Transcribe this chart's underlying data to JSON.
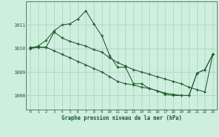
{
  "background_color": "#ceeede",
  "grid_color": "#aaccbb",
  "line_color": "#1a5c28",
  "marker_color": "#1a5c28",
  "xlabel": "Graphe pression niveau de la mer (hPa)",
  "xlim": [
    -0.5,
    23.5
  ],
  "ylim": [
    1007.4,
    1012.0
  ],
  "yticks": [
    1008,
    1009,
    1010,
    1011
  ],
  "xticks": [
    0,
    1,
    2,
    3,
    4,
    5,
    6,
    7,
    8,
    9,
    10,
    11,
    12,
    13,
    14,
    15,
    16,
    17,
    18,
    19,
    20,
    21,
    22,
    23
  ],
  "series1": [
    1010.0,
    1010.1,
    1010.35,
    1010.75,
    1011.0,
    1011.05,
    1011.25,
    1011.6,
    1011.05,
    1010.55,
    1009.7,
    1009.2,
    1009.2,
    1008.5,
    1008.5,
    1008.3,
    1008.2,
    1008.05,
    1008.0,
    1008.0,
    1008.0,
    1008.95,
    1009.1,
    1009.75
  ],
  "series2": [
    1010.05,
    1010.05,
    1010.05,
    1010.7,
    1010.45,
    1010.3,
    1010.2,
    1010.1,
    1009.95,
    1009.85,
    1009.6,
    1009.4,
    1009.25,
    1009.1,
    1009.0,
    1008.9,
    1008.8,
    1008.7,
    1008.6,
    1008.5,
    1008.35,
    1008.25,
    1008.15,
    1009.75
  ],
  "series3": [
    1010.0,
    1010.05,
    1010.05,
    1009.9,
    1009.75,
    1009.6,
    1009.45,
    1009.3,
    1009.15,
    1009.0,
    1008.8,
    1008.6,
    1008.5,
    1008.45,
    1008.35,
    1008.3,
    1008.2,
    1008.1,
    1008.05,
    1008.0,
    1008.0,
    1008.95,
    1009.1,
    1009.75
  ]
}
